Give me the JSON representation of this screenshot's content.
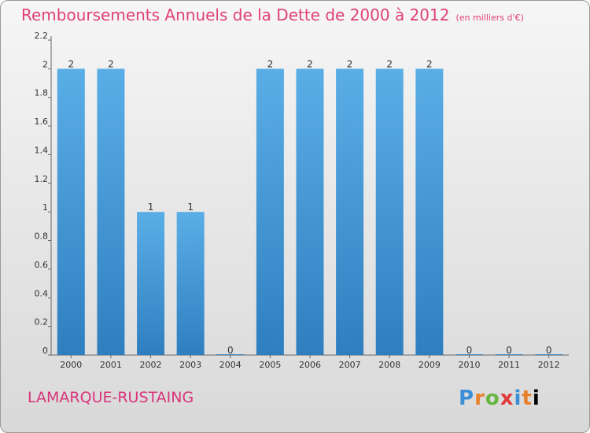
{
  "header": {
    "title": "Remboursements Annuels de la Dette de 2000 à 2012",
    "unit": "(en milliers d'€)"
  },
  "footer": {
    "commune": "LAMARQUE-RUSTAING",
    "logo_letters": [
      "P",
      "r",
      "o",
      "x",
      "i",
      "t",
      "i"
    ]
  },
  "colors": {
    "bar_top": "#5aaee6",
    "bar_bottom": "#2f7fc0",
    "title": "#e0407a",
    "axis": "#666666"
  },
  "chart_data": {
    "type": "bar",
    "title": "Remboursements Annuels de la Dette de 2000 à 2012",
    "categories": [
      "2000",
      "2001",
      "2002",
      "2003",
      "2004",
      "2005",
      "2006",
      "2007",
      "2008",
      "2009",
      "2010",
      "2011",
      "2012"
    ],
    "values": [
      2,
      2,
      1,
      1,
      0,
      2,
      2,
      2,
      2,
      2,
      0,
      0,
      0
    ],
    "data_labels": [
      "2",
      "2",
      "1",
      "1",
      "0",
      "2",
      "2",
      "2",
      "2",
      "2",
      "0",
      "0",
      "0"
    ],
    "y_ticks": [
      0,
      0.2,
      0.4,
      0.6,
      0.8,
      1,
      1.2,
      1.4,
      1.6,
      1.8,
      2,
      2.2
    ],
    "y_tick_labels": [
      "0",
      "0.2",
      "0.4",
      "0.6",
      "0.8",
      "1",
      "1.2",
      "1.4",
      "1.6",
      "1.8",
      "2",
      "2.2"
    ],
    "ylim": [
      0,
      2.2
    ],
    "grid": false
  }
}
